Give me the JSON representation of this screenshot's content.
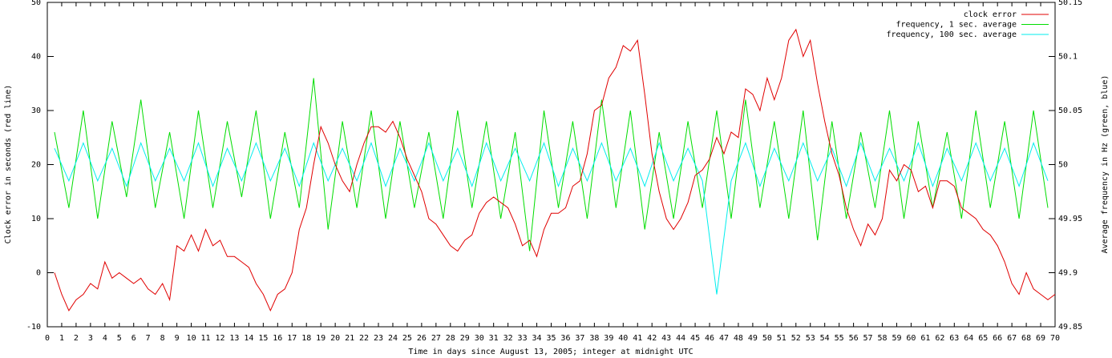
{
  "chart_data": {
    "type": "line",
    "xlabel": "Time in days since August 13, 2005; integer at midnight UTC",
    "ylabel": "Clock error in seconds (red line)",
    "y2label": "Average frequency in Hz (green, blue)",
    "xlim": [
      0,
      70
    ],
    "ylim": [
      -10,
      50
    ],
    "y2lim": [
      49.85,
      50.15
    ],
    "xticks": [
      0,
      1,
      2,
      3,
      4,
      5,
      6,
      7,
      8,
      9,
      10,
      11,
      12,
      13,
      14,
      15,
      16,
      17,
      18,
      19,
      20,
      21,
      22,
      23,
      24,
      25,
      26,
      27,
      28,
      29,
      30,
      31,
      32,
      33,
      34,
      35,
      36,
      37,
      38,
      39,
      40,
      41,
      42,
      43,
      44,
      45,
      46,
      47,
      48,
      49,
      50,
      51,
      52,
      53,
      54,
      55,
      56,
      57,
      58,
      59,
      60,
      61,
      62,
      63,
      64,
      65,
      66,
      67,
      68,
      69,
      70
    ],
    "yticks": [
      -10,
      0,
      10,
      20,
      30,
      40,
      50
    ],
    "y2ticks": [
      49.85,
      49.9,
      49.95,
      50,
      50.05,
      50.1,
      50.15
    ],
    "grid": false,
    "legend": "upper right",
    "series": [
      {
        "name": "clock error",
        "color": "#e00000",
        "axis": "y",
        "x": [
          0.5,
          1,
          1.5,
          2,
          2.5,
          3,
          3.5,
          4,
          4.5,
          5,
          5.5,
          6,
          6.5,
          7,
          7.5,
          8,
          8.5,
          9,
          9.5,
          10,
          10.5,
          11,
          11.5,
          12,
          12.5,
          13,
          13.5,
          14,
          14.5,
          15,
          15.5,
          16,
          16.5,
          17,
          17.5,
          18,
          18.5,
          19,
          19.5,
          20,
          20.5,
          21,
          21.5,
          22,
          22.5,
          23,
          23.5,
          24,
          24.5,
          25,
          25.5,
          26,
          26.5,
          27,
          27.5,
          28,
          28.5,
          29,
          29.5,
          30,
          30.5,
          31,
          31.5,
          32,
          32.5,
          33,
          33.5,
          34,
          34.5,
          35,
          35.5,
          36,
          36.5,
          37,
          37.5,
          38,
          38.5,
          39,
          39.5,
          40,
          40.5,
          41,
          41.5,
          42,
          42.5,
          43,
          43.5,
          44,
          44.5,
          45,
          45.5,
          46,
          46.5,
          47,
          47.5,
          48,
          48.5,
          49,
          49.5,
          50,
          50.5,
          51,
          51.5,
          52,
          52.5,
          53,
          53.5,
          54,
          54.5,
          55,
          55.5,
          56,
          56.5,
          57,
          57.5,
          58,
          58.5,
          59,
          59.5,
          60,
          60.5,
          61,
          61.5,
          62,
          62.5,
          63,
          63.5,
          64,
          64.5,
          65,
          65.5,
          66,
          66.5,
          67,
          67.5,
          68,
          68.5,
          69,
          69.5,
          70
        ],
        "values": [
          0,
          -4,
          -7,
          -5,
          -4,
          -2,
          -3,
          2,
          -1,
          0,
          -1,
          -2,
          -1,
          -3,
          -4,
          -2,
          -5,
          5,
          4,
          7,
          4,
          8,
          5,
          6,
          3,
          3,
          2,
          1,
          -2,
          -4,
          -7,
          -4,
          -3,
          0,
          8,
          12,
          20,
          27,
          24,
          20,
          17,
          15,
          20,
          24,
          27,
          27,
          26,
          28,
          25,
          21,
          18,
          15,
          10,
          9,
          7,
          5,
          4,
          6,
          7,
          11,
          13,
          14,
          13,
          12,
          9,
          5,
          6,
          3,
          8,
          11,
          11,
          12,
          16,
          17,
          22,
          30,
          31,
          36,
          38,
          42,
          41,
          43,
          33,
          22,
          15,
          10,
          8,
          10,
          13,
          18,
          19,
          21,
          25,
          22,
          26,
          25,
          34,
          33,
          30,
          36,
          32,
          36,
          43,
          45,
          40,
          43,
          35,
          28,
          22,
          18,
          12,
          8,
          5,
          9,
          7,
          10,
          19,
          17,
          20,
          19,
          15,
          16,
          12,
          17,
          17,
          16,
          12,
          11,
          10,
          8,
          7,
          5,
          2,
          -2,
          -4,
          0,
          -3,
          -4,
          -5,
          -4
        ]
      },
      {
        "name": "frequency, 1 sec. average",
        "color": "#00dd00",
        "axis": "y2",
        "x": [
          0.5,
          1.5,
          2.5,
          3.5,
          4.5,
          5.5,
          6.5,
          7.5,
          8.5,
          9.5,
          10.5,
          11.5,
          12.5,
          13.5,
          14.5,
          15.5,
          16.5,
          17.5,
          18.5,
          19.5,
          20.5,
          21.5,
          22.5,
          23.5,
          24.5,
          25.5,
          26.5,
          27.5,
          28.5,
          29.5,
          30.5,
          31.5,
          32.5,
          33.5,
          34.5,
          35.5,
          36.5,
          37.5,
          38.5,
          39.5,
          40.5,
          41.5,
          42.5,
          43.5,
          44.5,
          45.5,
          46.5,
          47.5,
          48.5,
          49.5,
          50.5,
          51.5,
          52.5,
          53.5,
          54.5,
          55.5,
          56.5,
          57.5,
          58.5,
          59.5,
          60.5,
          61.5,
          62.5,
          63.5,
          64.5,
          65.5,
          66.5,
          67.5,
          68.5,
          69.5
        ],
        "values": [
          50.03,
          49.96,
          50.05,
          49.95,
          50.04,
          49.97,
          50.06,
          49.96,
          50.03,
          49.95,
          50.05,
          49.96,
          50.04,
          49.97,
          50.05,
          49.95,
          50.03,
          49.96,
          50.08,
          49.94,
          50.04,
          49.96,
          50.05,
          49.95,
          50.04,
          49.96,
          50.03,
          49.95,
          50.05,
          49.96,
          50.04,
          49.95,
          50.03,
          49.92,
          50.05,
          49.96,
          50.04,
          49.95,
          50.06,
          49.96,
          50.05,
          49.94,
          50.03,
          49.95,
          50.04,
          49.96,
          50.05,
          49.95,
          50.06,
          49.96,
          50.04,
          49.95,
          50.05,
          49.93,
          50.04,
          49.95,
          50.03,
          49.96,
          50.05,
          49.95,
          50.04,
          49.96,
          50.03,
          49.95,
          50.05,
          49.96,
          50.04,
          49.95,
          50.05,
          49.96
        ]
      },
      {
        "name": "frequency, 100 sec. average",
        "color": "#00eeee",
        "axis": "y2",
        "x": [
          0.5,
          1.5,
          2.5,
          3.5,
          4.5,
          5.5,
          6.5,
          7.5,
          8.5,
          9.5,
          10.5,
          11.5,
          12.5,
          13.5,
          14.5,
          15.5,
          16.5,
          17.5,
          18.5,
          19.5,
          20.5,
          21.5,
          22.5,
          23.5,
          24.5,
          25.5,
          26.5,
          27.5,
          28.5,
          29.5,
          30.5,
          31.5,
          32.5,
          33.5,
          34.5,
          35.5,
          36.5,
          37.5,
          38.5,
          39.5,
          40.5,
          41.5,
          42.5,
          43.5,
          44.5,
          45.5,
          46.5,
          47.5,
          48.5,
          49.5,
          50.5,
          51.5,
          52.5,
          53.5,
          54.5,
          55.5,
          56.5,
          57.5,
          58.5,
          59.5,
          60.5,
          61.5,
          62.5,
          63.5,
          64.5,
          65.5,
          66.5,
          67.5,
          68.5,
          69.5
        ],
        "values": [
          50.015,
          49.985,
          50.02,
          49.985,
          50.015,
          49.98,
          50.02,
          49.985,
          50.015,
          49.985,
          50.02,
          49.98,
          50.015,
          49.985,
          50.02,
          49.985,
          50.015,
          49.98,
          50.02,
          49.985,
          50.015,
          49.985,
          50.02,
          49.98,
          50.015,
          49.985,
          50.02,
          49.985,
          50.015,
          49.98,
          50.02,
          49.985,
          50.015,
          49.985,
          50.02,
          49.98,
          50.015,
          49.985,
          50.02,
          49.985,
          50.015,
          49.98,
          50.02,
          49.985,
          50.015,
          49.985,
          49.88,
          49.985,
          50.02,
          49.98,
          50.015,
          49.985,
          50.02,
          49.985,
          50.015,
          49.98,
          50.02,
          49.985,
          50.015,
          49.985,
          50.02,
          49.98,
          50.015,
          49.985,
          50.02,
          49.985,
          50.015,
          49.98,
          50.02,
          49.985
        ]
      }
    ]
  }
}
